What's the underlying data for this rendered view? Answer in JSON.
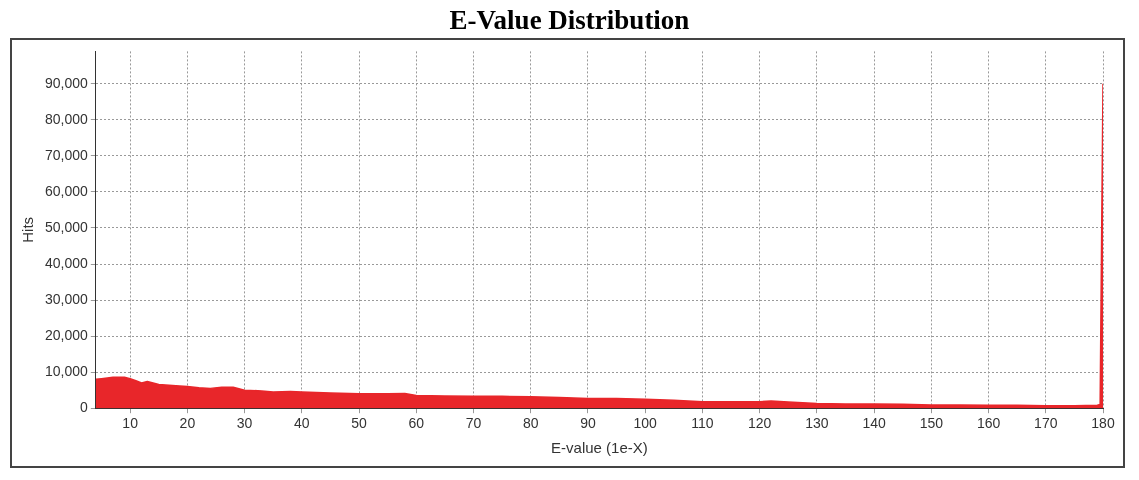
{
  "chart_data": {
    "type": "area",
    "title": "E-Value Distribution",
    "xlabel": "E-value (1e-X)",
    "ylabel": "Hits",
    "x": [
      4,
      5,
      7,
      9,
      10,
      11,
      12,
      13,
      15,
      18,
      20,
      22,
      24,
      26,
      28,
      30,
      33,
      35,
      38,
      40,
      45,
      50,
      55,
      58,
      60,
      65,
      70,
      75,
      80,
      85,
      90,
      95,
      100,
      105,
      110,
      115,
      120,
      122,
      125,
      130,
      135,
      140,
      145,
      150,
      155,
      160,
      165,
      170,
      175,
      179,
      179.5,
      180
    ],
    "series": [
      {
        "color": "#e8262a",
        "values": [
          8000,
          8200,
          8600,
          8600,
          8200,
          7600,
          7000,
          7400,
          6600,
          6200,
          6000,
          5700,
          5500,
          5800,
          5800,
          5000,
          4800,
          4500,
          4600,
          4500,
          4200,
          4000,
          4000,
          4100,
          3500,
          3400,
          3300,
          3300,
          3200,
          3000,
          2700,
          2700,
          2500,
          2200,
          1800,
          1800,
          1800,
          2000,
          1700,
          1300,
          1200,
          1200,
          1100,
          900,
          900,
          800,
          800,
          700,
          700,
          800,
          1000,
          90000
        ]
      }
    ],
    "xlim": [
      4,
      180
    ],
    "xticks": [
      10,
      20,
      30,
      40,
      50,
      60,
      70,
      80,
      90,
      100,
      110,
      120,
      130,
      140,
      150,
      160,
      170,
      180
    ],
    "ylim": [
      0,
      99000
    ],
    "yticks": [
      {
        "value": 0,
        "label": "0"
      },
      {
        "value": 10000,
        "label": "10,000"
      },
      {
        "value": 20000,
        "label": "20,000"
      },
      {
        "value": 30000,
        "label": "30,000"
      },
      {
        "value": 40000,
        "label": "40,000"
      },
      {
        "value": 50000,
        "label": "50,000"
      },
      {
        "value": 60000,
        "label": "60,000"
      },
      {
        "value": 70000,
        "label": "70,000"
      },
      {
        "value": 80000,
        "label": "80,000"
      },
      {
        "value": 90000,
        "label": "90,000"
      }
    ],
    "grid": true,
    "line_style": "solid",
    "marker": "none"
  }
}
